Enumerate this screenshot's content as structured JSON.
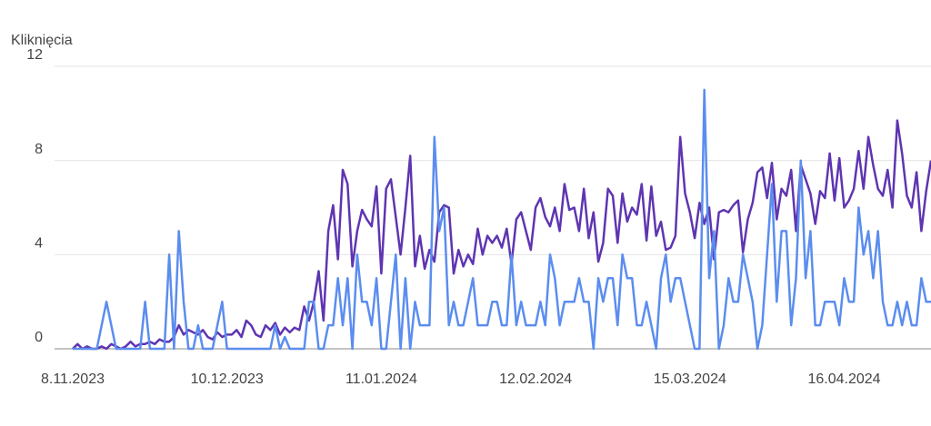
{
  "chart_data": {
    "type": "line",
    "y_label": "Kliknięcia",
    "categories": [
      "8.11.2023",
      null,
      null,
      null,
      null,
      null,
      null,
      null,
      null,
      null,
      null,
      null,
      null,
      null,
      null,
      null,
      null,
      null,
      null,
      null,
      null,
      null,
      null,
      null,
      null,
      null,
      null,
      null,
      null,
      null,
      null,
      null,
      "10.12.2023",
      null,
      null,
      null,
      null,
      null,
      null,
      null,
      null,
      null,
      null,
      null,
      null,
      null,
      null,
      null,
      null,
      null,
      null,
      null,
      null,
      null,
      null,
      null,
      null,
      null,
      null,
      null,
      null,
      null,
      null,
      null,
      "11.01.2024",
      null,
      null,
      null,
      null,
      null,
      null,
      null,
      null,
      null,
      null,
      null,
      null,
      null,
      null,
      null,
      null,
      null,
      null,
      null,
      null,
      null,
      null,
      null,
      null,
      null,
      null,
      null,
      null,
      null,
      null,
      null,
      "12.02.2024",
      null,
      null,
      null,
      null,
      null,
      null,
      null,
      null,
      null,
      null,
      null,
      null,
      null,
      null,
      null,
      null,
      null,
      null,
      null,
      null,
      null,
      null,
      null,
      null,
      null,
      null,
      null,
      null,
      null,
      null,
      null,
      "15.03.2024",
      null,
      null,
      null,
      null,
      null,
      null,
      null,
      null,
      null,
      null,
      null,
      null,
      null,
      null,
      null,
      null,
      null,
      null,
      null,
      null,
      null,
      null,
      null,
      null,
      null,
      null,
      null,
      null,
      null,
      null,
      null,
      "16.04.2024",
      null,
      null,
      null,
      null,
      null,
      null,
      null,
      null,
      null,
      null,
      null,
      null,
      null,
      null,
      null,
      null,
      null,
      null
    ],
    "series": [
      {
        "color": "#5e35b1",
        "values": [
          0,
          0.2,
          0,
          0.1,
          0,
          0,
          0.1,
          0,
          0.2,
          0.1,
          0,
          0.1,
          0.3,
          0.1,
          0.2,
          0.2,
          0.3,
          0.2,
          0.4,
          0.3,
          0.3,
          0.5,
          1,
          0.6,
          0.8,
          0.7,
          0.6,
          0.8,
          0.5,
          0.4,
          0.7,
          0.5,
          0.6,
          0.6,
          0.8,
          0.5,
          1.2,
          1,
          0.6,
          0.5,
          1,
          0.8,
          1.1,
          0.6,
          0.9,
          0.7,
          0.9,
          0.8,
          1.8,
          1.2,
          2,
          3.3,
          1.2,
          5,
          6.1,
          3.8,
          7.6,
          7,
          3.5,
          5,
          5.9,
          5.5,
          5.2,
          6.9,
          3.2,
          6.8,
          7.2,
          5.6,
          4,
          6,
          8.2,
          3.5,
          4.8,
          3.4,
          4.2,
          3.7,
          5.8,
          6.1,
          6,
          3.2,
          4.2,
          3.5,
          4,
          3.6,
          5.1,
          4,
          4.8,
          4.5,
          4.8,
          4.3,
          5.1,
          3.6,
          5.5,
          5.8,
          5,
          4.2,
          6,
          6.4,
          5.6,
          5.2,
          6,
          5,
          7,
          5.9,
          6,
          5,
          6.8,
          4.7,
          5.8,
          3.7,
          4.5,
          6.8,
          6.5,
          4.5,
          6.6,
          5.4,
          6,
          5.7,
          7,
          4.6,
          6.9,
          4.8,
          5.4,
          4.2,
          4.3,
          4.8,
          9,
          6.6,
          5.8,
          4.7,
          6.2,
          5.3,
          6,
          3.8,
          5.8,
          5.9,
          5.8,
          6.1,
          6.3,
          4.1,
          5.5,
          6.2,
          7.5,
          7.7,
          6.4,
          7.9,
          5.5,
          6.8,
          6.5,
          7.6,
          5,
          7.8,
          7.2,
          6.6,
          5.3,
          6.7,
          6.4,
          8.3,
          6.3,
          8.1,
          6,
          6.3,
          6.8,
          8.4,
          6.8,
          9,
          7.8,
          6.8,
          6.5,
          7.6,
          6,
          9.7,
          8.3,
          6.5,
          6,
          7.5,
          5,
          6.7,
          8
        ]
      },
      {
        "color": "#5b8def",
        "values": [
          0,
          0,
          0,
          0,
          0,
          0,
          1,
          2,
          1,
          0,
          0,
          0,
          0,
          0,
          0,
          2,
          0,
          0,
          0,
          0,
          4,
          0,
          5,
          2,
          0,
          0,
          1,
          0,
          0,
          0,
          1,
          2,
          0,
          0,
          0,
          0,
          0,
          0,
          0,
          0,
          0,
          0,
          1,
          0,
          0.5,
          0,
          0,
          0,
          0,
          2,
          2,
          0,
          0,
          1,
          1,
          3,
          1,
          3,
          0,
          4,
          2,
          2,
          1,
          3,
          0,
          0,
          2,
          4,
          0,
          3,
          0,
          2,
          1,
          1,
          1,
          9,
          5,
          6,
          1,
          2,
          1,
          1,
          2,
          3,
          1,
          1,
          1,
          2,
          2,
          1,
          1,
          4,
          1,
          2,
          1,
          1,
          1,
          2,
          1,
          4,
          3,
          1,
          2,
          2,
          2,
          3,
          2,
          2,
          0,
          3,
          2,
          3,
          3,
          1,
          4,
          3,
          3,
          1,
          1,
          2,
          1,
          0,
          3,
          4,
          2,
          3,
          3,
          2,
          1,
          0,
          0,
          11,
          3,
          5,
          0,
          1,
          3,
          2,
          2,
          4,
          3,
          2,
          0,
          1,
          4,
          7,
          2,
          5,
          5,
          1,
          3,
          8,
          3,
          5,
          1,
          1,
          2,
          2,
          2,
          1,
          3,
          2,
          2,
          6,
          4,
          5,
          3,
          5,
          2,
          1,
          1,
          2,
          1,
          2,
          1,
          1,
          3,
          2,
          2
        ]
      }
    ],
    "ylim": [
      0,
      12
    ],
    "yticks": [
      0,
      4,
      8,
      12
    ],
    "grid": true
  }
}
